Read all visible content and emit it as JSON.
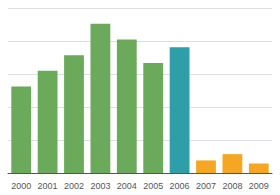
{
  "chart_data": {
    "type": "bar",
    "categories": [
      "2000",
      "2001",
      "2002",
      "2003",
      "2004",
      "2005",
      "2006",
      "2007",
      "2008",
      "2009"
    ],
    "values": [
      55,
      65,
      75,
      95,
      85,
      70,
      80,
      8,
      12,
      6
    ],
    "colors": [
      "#6aaa5a",
      "#6aaa5a",
      "#6aaa5a",
      "#6aaa5a",
      "#6aaa5a",
      "#6aaa5a",
      "#2e9ea8",
      "#f5a623",
      "#f5a623",
      "#f5a623"
    ],
    "ylim": [
      0,
      105
    ],
    "yticks": [
      0,
      21,
      42,
      63,
      84,
      105
    ],
    "grid": true,
    "tick_labels": "x"
  }
}
